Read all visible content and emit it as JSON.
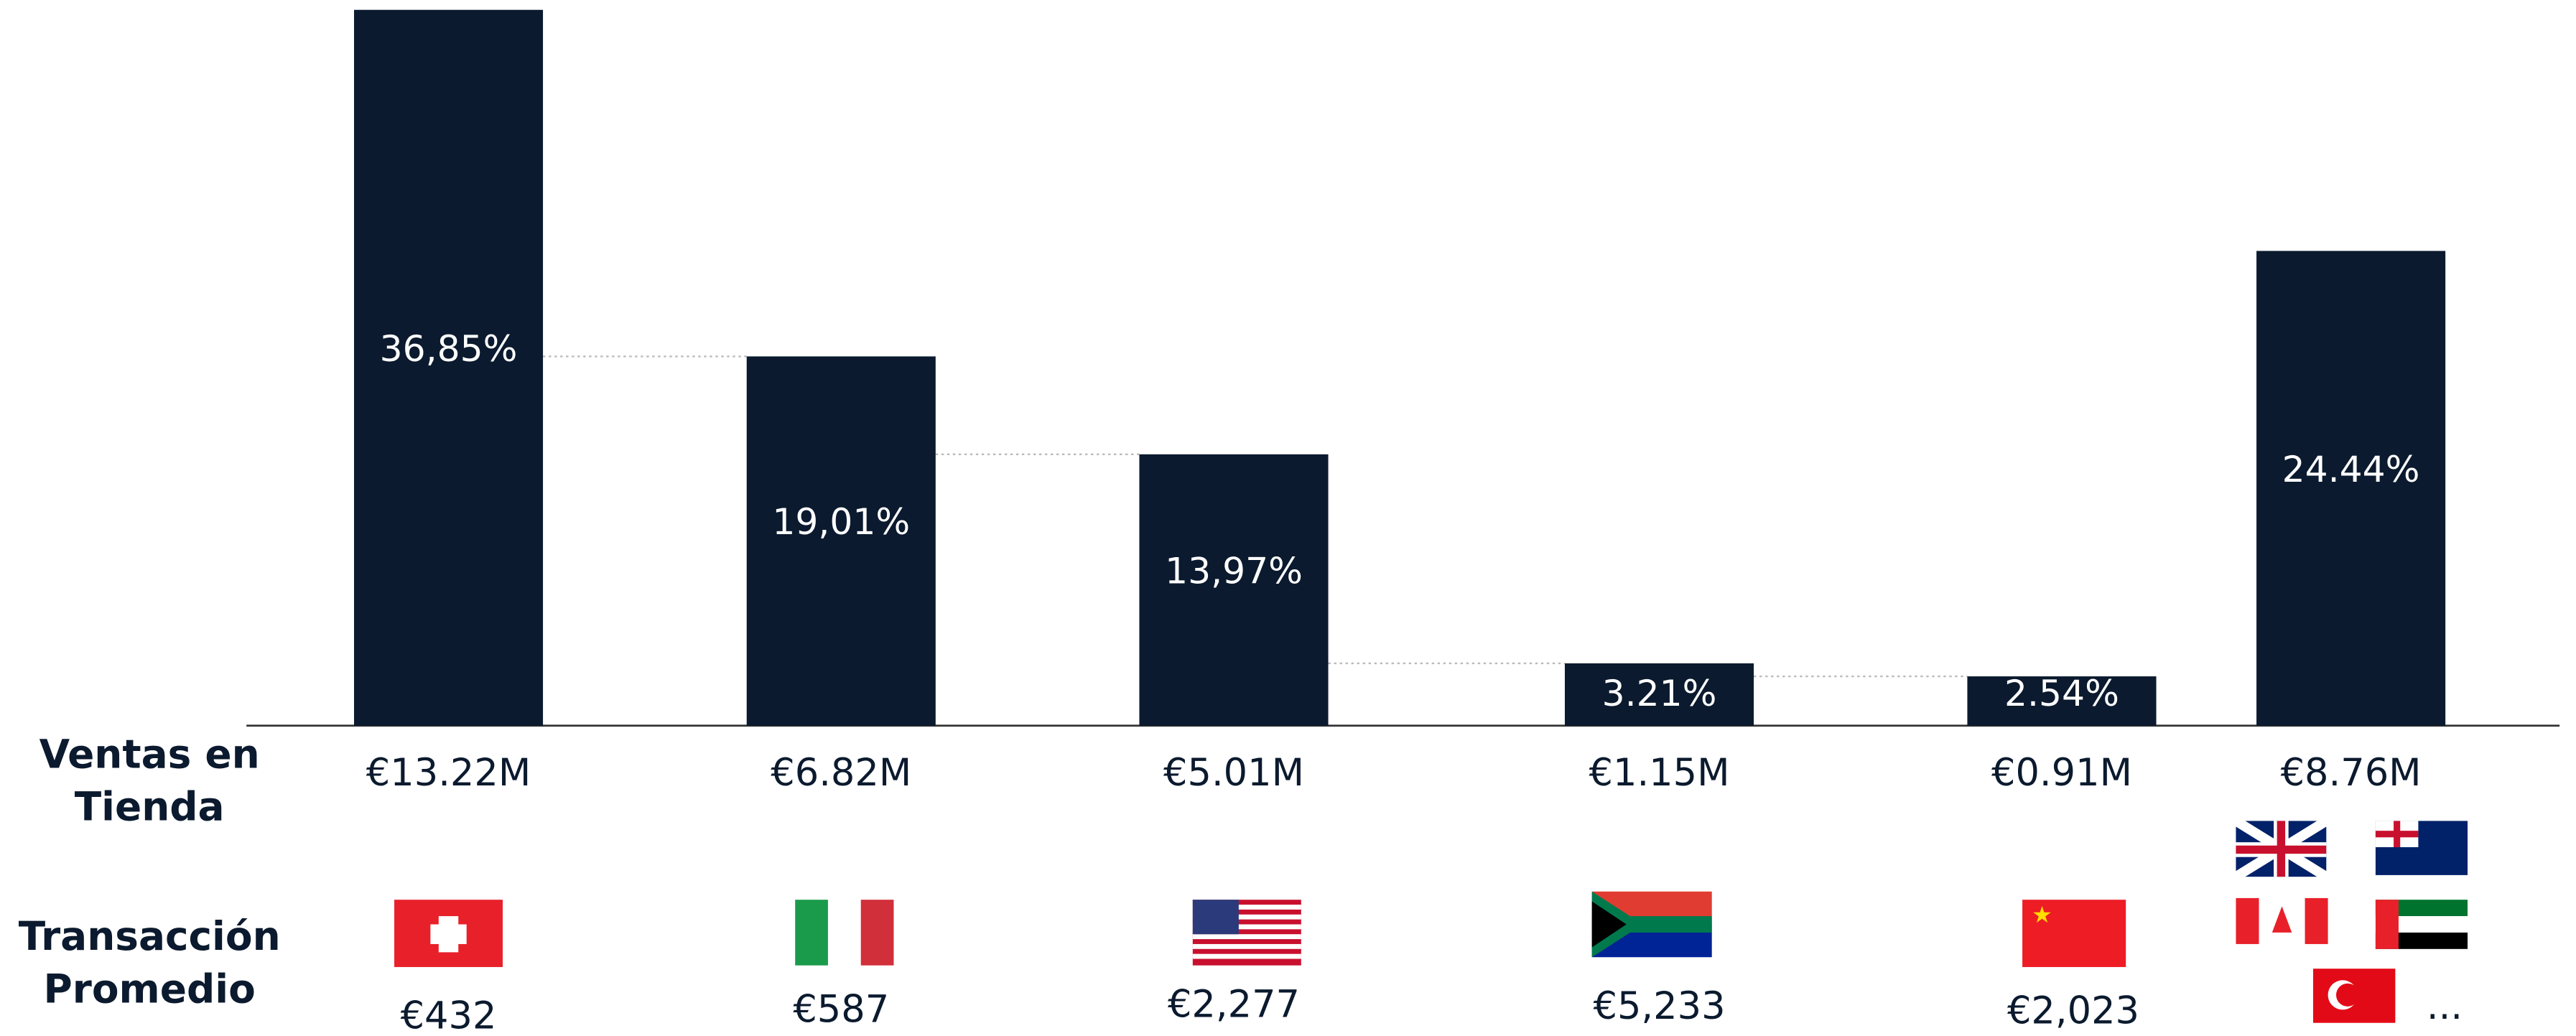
{
  "chart_data": {
    "type": "bar",
    "values": [
      36.85,
      19.01,
      13.97,
      3.21,
      2.54,
      24.44
    ],
    "value_labels": [
      "36,85%",
      "19,01%",
      "13,97%",
      "3.21%",
      "2.54%",
      "24.44%"
    ],
    "color": "#0b1a2e",
    "row_labels": [
      [
        "Ventas en",
        "Tienda"
      ],
      [
        "Transacción",
        "Promedio"
      ]
    ],
    "sales": [
      "€13.22M",
      "€6.82M",
      "€5.01M",
      "€1.15M",
      "€0.91M",
      "€8.76M"
    ],
    "transactions": [
      "€432",
      "€587",
      "€2,277",
      "€5,233",
      "€2,023"
    ],
    "others": "..."
  }
}
